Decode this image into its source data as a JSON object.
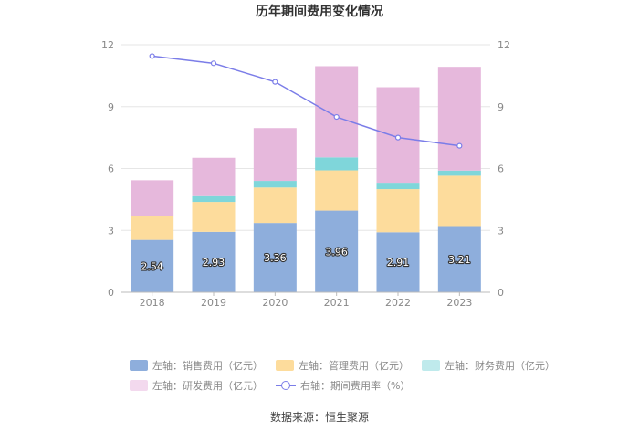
{
  "chart_data": {
    "type": "bar",
    "title": "历年期间费用变化情况",
    "categories": [
      "2018",
      "2019",
      "2020",
      "2021",
      "2022",
      "2023"
    ],
    "stacked": true,
    "series": [
      {
        "name": "左轴：销售费用（亿元）",
        "axis": "left",
        "color": "#8eaedc",
        "values": [
          2.54,
          2.93,
          3.36,
          3.96,
          2.91,
          3.21
        ],
        "labels": true
      },
      {
        "name": "左轴：管理费用（亿元）",
        "axis": "left",
        "color": "#fddc9c",
        "values": [
          1.16,
          1.45,
          1.72,
          1.95,
          2.09,
          2.44
        ]
      },
      {
        "name": "左轴：财务费用（亿元）",
        "axis": "left",
        "color": "#7fd6da",
        "values": [
          0.01,
          0.28,
          0.32,
          0.63,
          0.31,
          0.25
        ]
      },
      {
        "name": "左轴：研发费用（亿元）",
        "axis": "left",
        "color": "#e6b8dc",
        "values": [
          1.72,
          1.86,
          2.56,
          4.42,
          4.63,
          5.03
        ]
      },
      {
        "name": "右轴：期间费用率（%）",
        "axis": "right",
        "type": "line",
        "color": "#7b7de8",
        "values": [
          11.45,
          11.1,
          10.2,
          8.5,
          7.5,
          7.1
        ]
      }
    ],
    "y_left": {
      "min": 0,
      "max": 12,
      "ticks": [
        "0",
        "3",
        "6",
        "9",
        "12"
      ]
    },
    "y_right": {
      "min": 0,
      "max": 12,
      "ticks": [
        "0",
        "3",
        "6",
        "9",
        "12"
      ]
    },
    "grid": true,
    "legend_position": "bottom"
  },
  "source": "数据来源：恒生聚源"
}
